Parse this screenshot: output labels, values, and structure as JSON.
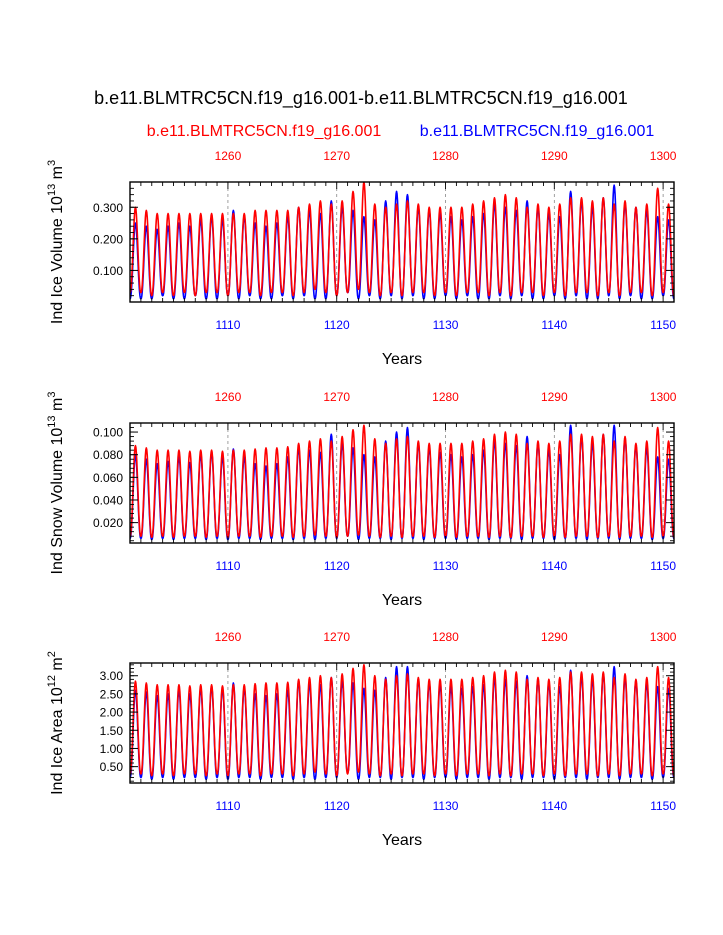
{
  "figure": {
    "title": "b.e11.BLMTRC5CN.f19_g16.001-b.e11.BLMTRC5CN.f19_g16.001",
    "case_red": "b.e11.BLMTRC5CN.f19_g16.001",
    "case_blue": "b.e11.BLMTRC5CN.f19_g16.001",
    "color_red": "#ff0000",
    "color_blue": "#0000ff"
  },
  "chart_data": [
    {
      "type": "line",
      "ylabel_main": "Ind Ice Volume 10",
      "ylabel_exp": "13",
      "ylabel_unit": " m",
      "ylabel_unit_exp": "3",
      "xlabel": "Years",
      "x_bottom_range": [
        1101,
        1151
      ],
      "x_top_range": [
        1251,
        1301
      ],
      "x_bottom_ticks": [
        "1110",
        "1120",
        "1130",
        "1140",
        "1150"
      ],
      "x_top_ticks": [
        "1260",
        "1270",
        "1280",
        "1290",
        "1300"
      ],
      "ylim": [
        0.0,
        0.38
      ],
      "y_ticks": [
        "0.100",
        "0.200",
        "0.300"
      ],
      "y_tick_values": [
        0.1,
        0.2,
        0.3
      ],
      "series": [
        {
          "name": "b.e11.BLMTRC5CN.f19_g16.001",
          "color": "blue",
          "max": [
            0.25,
            0.24,
            0.23,
            0.24,
            0.25,
            0.24,
            0.26,
            0.27,
            0.26,
            0.29,
            0.27,
            0.25,
            0.24,
            0.25,
            0.27,
            0.3,
            0.29,
            0.28,
            0.32,
            0.3,
            0.29,
            0.27,
            0.26,
            0.32,
            0.35,
            0.34,
            0.3,
            0.29,
            0.28,
            0.27,
            0.26,
            0.27,
            0.28,
            0.31,
            0.3,
            0.29,
            0.32,
            0.3,
            0.28,
            0.27,
            0.35,
            0.32,
            0.3,
            0.33,
            0.37,
            0.31,
            0.3,
            0.29,
            0.27,
            0.26
          ],
          "min": [
            0.01,
            0.01,
            0.02,
            0.01,
            0.01,
            0.02,
            0.01,
            0.01,
            0.02,
            0.01,
            0.02,
            0.01,
            0.01,
            0.02,
            0.01,
            0.02,
            0.01,
            0.01,
            0.02,
            0.03,
            0.01,
            0.02,
            0.01,
            0.02,
            0.01,
            0.02,
            0.01,
            0.01,
            0.02,
            0.01,
            0.02,
            0.01,
            0.01,
            0.02,
            0.01,
            0.02,
            0.01,
            0.01,
            0.02,
            0.01,
            0.02,
            0.01,
            0.01,
            0.02,
            0.01,
            0.02,
            0.01,
            0.01,
            0.02,
            0.01
          ]
        },
        {
          "name": "b.e11.BLMTRC5CN.f19_g16.001",
          "color": "red",
          "max": [
            0.3,
            0.29,
            0.28,
            0.28,
            0.28,
            0.28,
            0.28,
            0.28,
            0.28,
            0.28,
            0.28,
            0.29,
            0.29,
            0.29,
            0.29,
            0.3,
            0.31,
            0.32,
            0.31,
            0.32,
            0.35,
            0.38,
            0.31,
            0.3,
            0.31,
            0.32,
            0.31,
            0.3,
            0.3,
            0.3,
            0.3,
            0.31,
            0.32,
            0.33,
            0.34,
            0.33,
            0.3,
            0.31,
            0.3,
            0.31,
            0.33,
            0.33,
            0.32,
            0.33,
            0.31,
            0.32,
            0.3,
            0.31,
            0.36,
            0.31
          ],
          "min": [
            0.03,
            0.02,
            0.03,
            0.02,
            0.03,
            0.02,
            0.03,
            0.03,
            0.02,
            0.03,
            0.03,
            0.02,
            0.03,
            0.03,
            0.02,
            0.03,
            0.04,
            0.03,
            0.02,
            0.03,
            0.04,
            0.03,
            0.02,
            0.03,
            0.02,
            0.03,
            0.03,
            0.02,
            0.03,
            0.02,
            0.03,
            0.03,
            0.02,
            0.03,
            0.02,
            0.03,
            0.03,
            0.02,
            0.03,
            0.02,
            0.03,
            0.03,
            0.02,
            0.03,
            0.02,
            0.03,
            0.03,
            0.02,
            0.03,
            0.02
          ]
        }
      ]
    },
    {
      "type": "line",
      "ylabel_main": "Ind Snow Volume 10",
      "ylabel_exp": "13",
      "ylabel_unit": " m",
      "ylabel_unit_exp": "3",
      "xlabel": "Years",
      "x_bottom_range": [
        1101,
        1151
      ],
      "x_top_range": [
        1251,
        1301
      ],
      "x_bottom_ticks": [
        "1110",
        "1120",
        "1130",
        "1140",
        "1150"
      ],
      "x_top_ticks": [
        "1260",
        "1270",
        "1280",
        "1290",
        "1300"
      ],
      "ylim": [
        0.002,
        0.108
      ],
      "y_ticks": [
        "0.020",
        "0.040",
        "0.060",
        "0.080",
        "0.100"
      ],
      "y_tick_values": [
        0.02,
        0.04,
        0.06,
        0.08,
        0.1
      ],
      "series": [
        {
          "name": "b.e11.BLMTRC5CN.f19_g16.001",
          "color": "blue",
          "max": [
            0.08,
            0.076,
            0.072,
            0.074,
            0.078,
            0.073,
            0.08,
            0.082,
            0.078,
            0.085,
            0.078,
            0.072,
            0.07,
            0.072,
            0.078,
            0.086,
            0.084,
            0.082,
            0.098,
            0.09,
            0.086,
            0.08,
            0.078,
            0.092,
            0.1,
            0.104,
            0.09,
            0.086,
            0.082,
            0.08,
            0.078,
            0.08,
            0.084,
            0.092,
            0.09,
            0.088,
            0.096,
            0.09,
            0.084,
            0.08,
            0.106,
            0.096,
            0.09,
            0.098,
            0.106,
            0.094,
            0.088,
            0.086,
            0.078,
            0.076
          ],
          "min": [
            0.006,
            0.005,
            0.006,
            0.005,
            0.006,
            0.006,
            0.005,
            0.006,
            0.005,
            0.006,
            0.006,
            0.005,
            0.006,
            0.006,
            0.005,
            0.006,
            0.005,
            0.006,
            0.006,
            0.008,
            0.005,
            0.006,
            0.006,
            0.005,
            0.006,
            0.006,
            0.005,
            0.006,
            0.006,
            0.005,
            0.006,
            0.006,
            0.005,
            0.006,
            0.006,
            0.005,
            0.006,
            0.006,
            0.005,
            0.006,
            0.006,
            0.005,
            0.006,
            0.006,
            0.005,
            0.006,
            0.006,
            0.005,
            0.006,
            0.006
          ]
        },
        {
          "name": "b.e11.BLMTRC5CN.f19_g16.001",
          "color": "red",
          "max": [
            0.088,
            0.086,
            0.084,
            0.084,
            0.084,
            0.083,
            0.084,
            0.084,
            0.083,
            0.084,
            0.084,
            0.085,
            0.086,
            0.086,
            0.087,
            0.09,
            0.092,
            0.094,
            0.092,
            0.096,
            0.102,
            0.106,
            0.094,
            0.09,
            0.094,
            0.096,
            0.092,
            0.09,
            0.09,
            0.09,
            0.09,
            0.092,
            0.094,
            0.098,
            0.1,
            0.098,
            0.09,
            0.092,
            0.09,
            0.092,
            0.098,
            0.098,
            0.096,
            0.098,
            0.092,
            0.096,
            0.09,
            0.092,
            0.104,
            0.092
          ],
          "min": [
            0.008,
            0.007,
            0.008,
            0.007,
            0.008,
            0.008,
            0.007,
            0.008,
            0.007,
            0.008,
            0.008,
            0.007,
            0.008,
            0.008,
            0.007,
            0.008,
            0.009,
            0.008,
            0.007,
            0.008,
            0.009,
            0.008,
            0.007,
            0.008,
            0.007,
            0.008,
            0.008,
            0.007,
            0.008,
            0.007,
            0.008,
            0.008,
            0.007,
            0.008,
            0.007,
            0.008,
            0.008,
            0.007,
            0.008,
            0.007,
            0.008,
            0.008,
            0.007,
            0.008,
            0.007,
            0.008,
            0.008,
            0.007,
            0.008,
            0.007
          ]
        }
      ]
    },
    {
      "type": "line",
      "ylabel_main": "Ind Ice Area 10",
      "ylabel_exp": "12",
      "ylabel_unit": " m",
      "ylabel_unit_exp": "2",
      "xlabel": "Years",
      "x_bottom_range": [
        1101,
        1151
      ],
      "x_top_range": [
        1251,
        1301
      ],
      "x_bottom_ticks": [
        "1110",
        "1120",
        "1130",
        "1140",
        "1150"
      ],
      "x_top_ticks": [
        "1260",
        "1270",
        "1280",
        "1290",
        "1300"
      ],
      "ylim": [
        0.05,
        3.35
      ],
      "y_ticks": [
        "0.50",
        "1.00",
        "1.50",
        "2.00",
        "2.50",
        "3.00"
      ],
      "y_tick_values": [
        0.5,
        1.0,
        1.5,
        2.0,
        2.5,
        3.0
      ],
      "series": [
        {
          "name": "b.e11.BLMTRC5CN.f19_g16.001",
          "color": "blue",
          "max": [
            2.6,
            2.55,
            2.45,
            2.5,
            2.6,
            2.5,
            2.65,
            2.7,
            2.65,
            2.8,
            2.65,
            2.5,
            2.45,
            2.5,
            2.6,
            2.85,
            2.8,
            2.75,
            2.95,
            2.85,
            2.8,
            2.65,
            2.6,
            2.95,
            3.25,
            3.25,
            2.9,
            2.8,
            2.75,
            2.7,
            2.65,
            2.7,
            2.75,
            2.95,
            2.9,
            2.85,
            3.0,
            2.9,
            2.8,
            2.7,
            3.15,
            3.0,
            2.9,
            3.05,
            3.25,
            2.95,
            2.85,
            2.8,
            2.7,
            2.65
          ],
          "min": [
            0.2,
            0.15,
            0.2,
            0.15,
            0.2,
            0.2,
            0.15,
            0.2,
            0.15,
            0.2,
            0.2,
            0.15,
            0.2,
            0.2,
            0.15,
            0.2,
            0.15,
            0.2,
            0.2,
            0.35,
            0.15,
            0.2,
            0.2,
            0.15,
            0.2,
            0.2,
            0.15,
            0.2,
            0.2,
            0.15,
            0.2,
            0.2,
            0.15,
            0.2,
            0.2,
            0.15,
            0.2,
            0.2,
            0.15,
            0.2,
            0.2,
            0.15,
            0.2,
            0.2,
            0.15,
            0.2,
            0.2,
            0.15,
            0.2,
            0.2
          ]
        },
        {
          "name": "b.e11.BLMTRC5CN.f19_g16.001",
          "color": "red",
          "max": [
            2.85,
            2.8,
            2.75,
            2.75,
            2.75,
            2.72,
            2.75,
            2.75,
            2.72,
            2.75,
            2.75,
            2.78,
            2.8,
            2.8,
            2.82,
            2.9,
            2.95,
            3.0,
            2.95,
            3.05,
            3.2,
            3.3,
            3.0,
            2.9,
            3.0,
            3.05,
            2.95,
            2.9,
            2.9,
            2.9,
            2.9,
            2.95,
            3.0,
            3.1,
            3.15,
            3.1,
            2.9,
            2.95,
            2.9,
            2.95,
            3.1,
            3.1,
            3.05,
            3.1,
            2.95,
            3.05,
            2.9,
            2.95,
            3.25,
            2.95
          ],
          "min": [
            0.3,
            0.25,
            0.3,
            0.25,
            0.3,
            0.3,
            0.25,
            0.3,
            0.25,
            0.3,
            0.3,
            0.25,
            0.3,
            0.3,
            0.25,
            0.3,
            0.35,
            0.3,
            0.25,
            0.3,
            0.35,
            0.3,
            0.25,
            0.3,
            0.25,
            0.3,
            0.3,
            0.25,
            0.3,
            0.25,
            0.3,
            0.3,
            0.25,
            0.3,
            0.25,
            0.3,
            0.3,
            0.25,
            0.3,
            0.25,
            0.3,
            0.3,
            0.25,
            0.3,
            0.25,
            0.3,
            0.3,
            0.25,
            0.3,
            0.25
          ]
        }
      ]
    }
  ]
}
